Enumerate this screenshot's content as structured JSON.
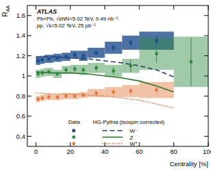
{
  "chart_data": {
    "type": "scatter",
    "ylabel": "RAA",
    "xlabel": "Centrality [%]",
    "annotations": [
      "ATLAS",
      "Pb+Pb, √sNN=5.02 TeV, 0.49 nb⁻¹",
      "pp, √s=5.02 TeV, 25 pb⁻¹",
      "Data"
    ],
    "xlim": [
      -5,
      100
    ],
    "ylim": [
      0.3,
      1.7
    ],
    "xticks": [
      0,
      20,
      40,
      60,
      80,
      100
    ],
    "yticks": [
      0.4,
      0.6,
      0.8,
      1,
      1.2,
      1.4,
      1.6
    ],
    "grid": false,
    "legend": "bottom",
    "series": [
      {
        "name": "W⁻",
        "color": "#1f4e8c",
        "marker": "square",
        "x": [
          1.25,
          3.75,
          7.5,
          12.5,
          17.5,
          22.5,
          27.5,
          35,
          45,
          55,
          70
        ],
        "x_err": [
          1.25,
          1.25,
          2.5,
          2.5,
          2.5,
          2.5,
          2.5,
          5,
          5,
          5,
          10
        ],
        "values": [
          1.15,
          1.16,
          1.17,
          1.18,
          1.19,
          1.21,
          1.2,
          1.23,
          1.28,
          1.33,
          1.35
        ],
        "stat_err": [
          0.02,
          0.02,
          0.02,
          0.02,
          0.02,
          0.02,
          0.02,
          0.02,
          0.03,
          0.04,
          0.05
        ],
        "syst_err": [
          0.04,
          0.04,
          0.04,
          0.04,
          0.04,
          0.04,
          0.05,
          0.05,
          0.06,
          0.07,
          0.09
        ]
      },
      {
        "name": "Z",
        "color": "#2e8b3e",
        "marker": "circle",
        "x": [
          1.25,
          3.75,
          7.5,
          12.5,
          17.5,
          22.5,
          27.5,
          35,
          45,
          55,
          70,
          90
        ],
        "x_err": [
          1.25,
          1.25,
          2.5,
          2.5,
          2.5,
          2.5,
          2.5,
          5,
          5,
          5,
          10,
          10
        ],
        "values": [
          1.02,
          1.03,
          1.04,
          1.02,
          1.06,
          1.07,
          1.06,
          1.08,
          1.05,
          1.1,
          1.22,
          1.14
        ],
        "stat_err": [
          0.02,
          0.02,
          0.02,
          0.02,
          0.03,
          0.03,
          0.03,
          0.03,
          0.04,
          0.06,
          0.09,
          0.24
        ],
        "syst_err": [
          0.04,
          0.04,
          0.04,
          0.04,
          0.04,
          0.04,
          0.05,
          0.05,
          0.06,
          0.07,
          0.16,
          0.25
        ]
      },
      {
        "name": "W⁺",
        "color": "#e0783a",
        "marker": "circle",
        "x": [
          1.25,
          3.75,
          7.5,
          12.5,
          17.5,
          22.5,
          27.5,
          35,
          45,
          55,
          70
        ],
        "x_err": [
          1.25,
          1.25,
          2.5,
          2.5,
          2.5,
          2.5,
          2.5,
          5,
          5,
          5,
          10
        ],
        "values": [
          0.77,
          0.78,
          0.79,
          0.79,
          0.8,
          0.8,
          0.81,
          0.83,
          0.84,
          0.85,
          0.86
        ],
        "stat_err": [
          0.02,
          0.02,
          0.02,
          0.02,
          0.02,
          0.02,
          0.02,
          0.02,
          0.03,
          0.03,
          0.04
        ],
        "syst_err": [
          0.03,
          0.03,
          0.03,
          0.03,
          0.03,
          0.03,
          0.03,
          0.04,
          0.05,
          0.06,
          0.08
        ]
      }
    ],
    "models": {
      "name": "HG-Pythia (isospin corrected)",
      "x": [
        0,
        10,
        20,
        30,
        40,
        50,
        60,
        70,
        80
      ],
      "series": [
        {
          "color": "#1f3f73",
          "line_style": "dashed",
          "values": [
            1.19,
            1.19,
            1.18,
            1.17,
            1.15,
            1.13,
            1.1,
            1.06,
            0.99
          ]
        },
        {
          "color": "#2b7a2b",
          "line_style": "solid",
          "values": [
            1.04,
            1.03,
            1.03,
            1.02,
            1.0,
            0.98,
            0.95,
            0.9,
            0.84
          ]
        },
        {
          "color": "#e06a2a",
          "line_style": "dotted",
          "values": [
            0.83,
            0.82,
            0.82,
            0.81,
            0.8,
            0.78,
            0.76,
            0.72,
            0.68
          ]
        }
      ]
    }
  }
}
